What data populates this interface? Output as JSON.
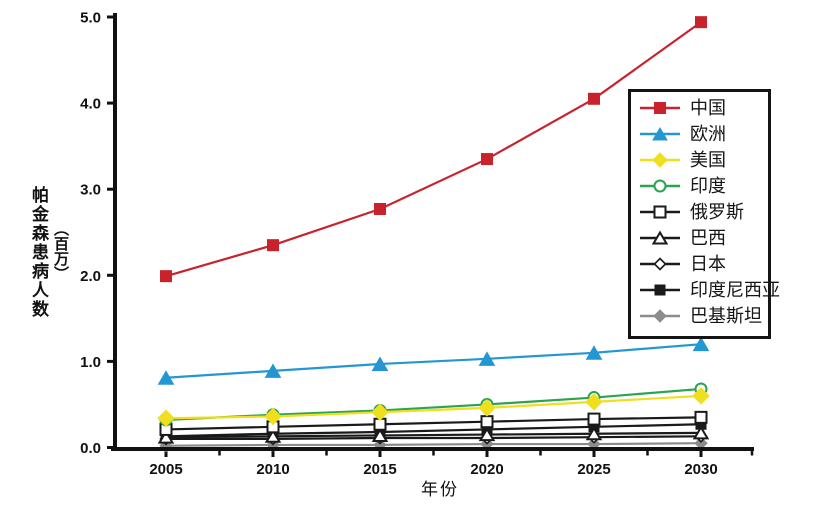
{
  "figure": {
    "xlabel": "年份",
    "ylabel_main": "帕金森患病人数",
    "ylabel_unit": "（百万）"
  },
  "chart_data": {
    "type": "line",
    "title": "",
    "xlabel": "年份",
    "ylabel": "帕金森患病人数（百万）",
    "x": [
      2005,
      2010,
      2015,
      2020,
      2025,
      2030
    ],
    "x_minor_ticks": [
      2007.5,
      2012.5,
      2017.5,
      2022.5,
      2027.5,
      2032.5
    ],
    "ylim": [
      0,
      5
    ],
    "yticks": [
      0,
      1,
      2,
      3,
      4,
      5
    ],
    "ytick_labels": [
      "0.0",
      "1.0",
      "2.0",
      "3.0",
      "4.0",
      "5.0"
    ],
    "grid": false,
    "legend_position": "inside-right",
    "axis_color": "#111111",
    "series": [
      {
        "key": "china",
        "name": "中国",
        "color": "#C8232C",
        "marker": "square",
        "fill": "solid",
        "msize": 11,
        "values": [
          1.99,
          2.35,
          2.77,
          3.35,
          4.05,
          4.94
        ]
      },
      {
        "key": "europe",
        "name": "欧洲",
        "color": "#2497D2",
        "marker": "triangle",
        "fill": "solid",
        "msize": 13,
        "values": [
          0.81,
          0.89,
          0.97,
          1.03,
          1.1,
          1.2
        ]
      },
      {
        "key": "usa",
        "name": "美国",
        "color": "#F0DF1F",
        "marker": "diamond",
        "fill": "solid",
        "msize": 14,
        "values": [
          0.34,
          0.36,
          0.41,
          0.46,
          0.53,
          0.6
        ]
      },
      {
        "key": "india",
        "name": "印度",
        "color": "#2AA44F",
        "marker": "circle",
        "fill": "open",
        "msize": 11,
        "values": [
          0.32,
          0.38,
          0.43,
          0.5,
          0.58,
          0.68
        ]
      },
      {
        "key": "russia",
        "name": "俄罗斯",
        "color": "#1A1A1A",
        "marker": "square",
        "fill": "open",
        "msize": 11,
        "values": [
          0.21,
          0.24,
          0.27,
          0.3,
          0.33,
          0.35
        ]
      },
      {
        "key": "brazil",
        "name": "巴西",
        "color": "#1A1A1A",
        "marker": "triangle",
        "fill": "open",
        "msize": 11,
        "values": [
          0.12,
          0.13,
          0.14,
          0.15,
          0.16,
          0.17
        ]
      },
      {
        "key": "japan",
        "name": "日本",
        "color": "#1A1A1A",
        "marker": "diamond",
        "fill": "open",
        "msize": 9,
        "values": [
          0.1,
          0.1,
          0.11,
          0.11,
          0.12,
          0.13
        ]
      },
      {
        "key": "indonesia",
        "name": "印度尼西亚",
        "color": "#1A1A1A",
        "marker": "square",
        "fill": "solid",
        "msize": 10,
        "values": [
          0.13,
          0.16,
          0.18,
          0.21,
          0.24,
          0.27
        ]
      },
      {
        "key": "pakistan",
        "name": "巴基斯坦",
        "color": "#8C8C8C",
        "marker": "diamond",
        "fill": "solid",
        "msize": 10,
        "values": [
          0.02,
          0.03,
          0.03,
          0.04,
          0.04,
          0.05
        ]
      }
    ]
  }
}
